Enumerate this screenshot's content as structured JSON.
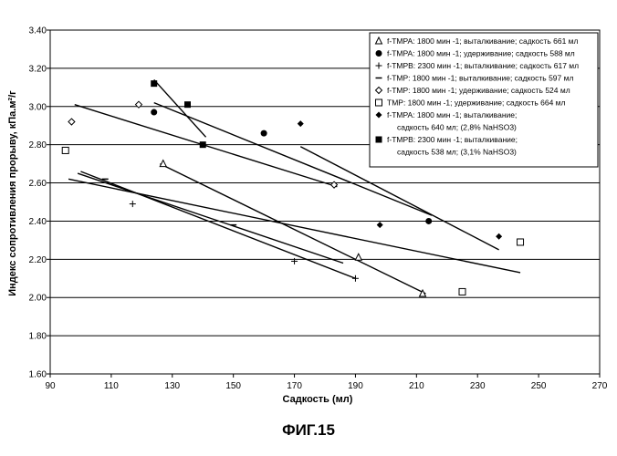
{
  "figure_caption": "ФИГ.15",
  "chart_data": {
    "type": "scatter",
    "title": "",
    "xlabel": "Садкость (мл)",
    "ylabel": "Индекс сопротивления прорыву, кПа.м²/г",
    "xlim": [
      90,
      270
    ],
    "ylim": [
      1.6,
      3.4
    ],
    "x_ticks": [
      "90",
      "110",
      "130",
      "150",
      "170",
      "190",
      "210",
      "230",
      "250",
      "270"
    ],
    "y_ticks": [
      "1.60",
      "1.80",
      "2.00",
      "2.20",
      "2.40",
      "2.60",
      "2.80",
      "3.00",
      "3.20",
      "3.40"
    ],
    "grid": "horizontal",
    "legend_position": "top-right",
    "series": [
      {
        "name": "f-TMPA: 1800 мин -1; выталкивание; садкость 661 мл",
        "marker": "triangle-open",
        "points": [
          [
            127,
            2.7
          ],
          [
            191,
            2.21
          ],
          [
            212,
            2.02
          ]
        ],
        "trend": [
          [
            126,
            2.7
          ],
          [
            213,
            2.02
          ]
        ]
      },
      {
        "name": "f-TMPA: 1800 мин -1; удерживание; садкость 588 мл",
        "marker": "circle-filled",
        "points": [
          [
            124,
            2.97
          ],
          [
            160,
            2.86
          ],
          [
            214,
            2.4
          ]
        ],
        "trend": [
          [
            124,
            3.02
          ],
          [
            215,
            2.43
          ]
        ]
      },
      {
        "name": "f-TMPB: 2300 мин -1; выталкивание; садкость 617 мл",
        "marker": "plus",
        "points": [
          [
            117,
            2.49
          ],
          [
            170,
            2.19
          ],
          [
            190,
            2.1
          ]
        ],
        "trend": [
          [
            100,
            2.66
          ],
          [
            190,
            2.1
          ]
        ]
      },
      {
        "name": "f-TMP: 1800 мин -1; выталкивание; садкость 597 мл",
        "marker": "dash",
        "points": [
          [
            108,
            2.62
          ],
          [
            150,
            2.38
          ]
        ],
        "trend": [
          [
            99,
            2.65
          ],
          [
            186,
            2.18
          ]
        ]
      },
      {
        "name": "f-TMP: 1800 мин -1; удерживание; садкость 524 мл",
        "marker": "diamond-open",
        "points": [
          [
            97,
            2.92
          ],
          [
            119,
            3.01
          ],
          [
            183,
            2.59
          ]
        ],
        "trend": [
          [
            98,
            3.01
          ],
          [
            184,
            2.58
          ]
        ]
      },
      {
        "name": "TMP: 1800 мин -1; удерживание; садкость 664 мл",
        "marker": "square-open",
        "points": [
          [
            95,
            2.77
          ],
          [
            225,
            2.03
          ],
          [
            244,
            2.29
          ]
        ],
        "trend": [
          [
            96,
            2.62
          ],
          [
            244,
            2.13
          ]
        ]
      },
      {
        "name": "f-TMPA: 1800 мин -1; выталкивание; садкость 640 мл; (2,8% NaHSO3)",
        "legend_lines": [
          "f-TMPA: 1800 мин -1; выталкивание;",
          "садкость 640 мл; (2,8% NaHSO3)"
        ],
        "marker": "diamond-filled",
        "points": [
          [
            172,
            2.91
          ],
          [
            198,
            2.38
          ],
          [
            237,
            2.32
          ]
        ],
        "trend": [
          [
            172,
            2.79
          ],
          [
            237,
            2.25
          ]
        ]
      },
      {
        "name": "f-TMPB: 2300 мин -1; выталкивание; садкость 538 мл; (3,1% NaHSO3)",
        "legend_lines": [
          "f-TMPB: 2300 мин -1; выталкивание;",
          "садкость 538 мл; (3,1% NaHSO3)"
        ],
        "marker": "square-filled",
        "points": [
          [
            124,
            3.12
          ],
          [
            135,
            3.01
          ],
          [
            140,
            2.8
          ]
        ],
        "trend": [
          [
            124,
            3.14
          ],
          [
            141,
            2.84
          ]
        ]
      }
    ]
  }
}
